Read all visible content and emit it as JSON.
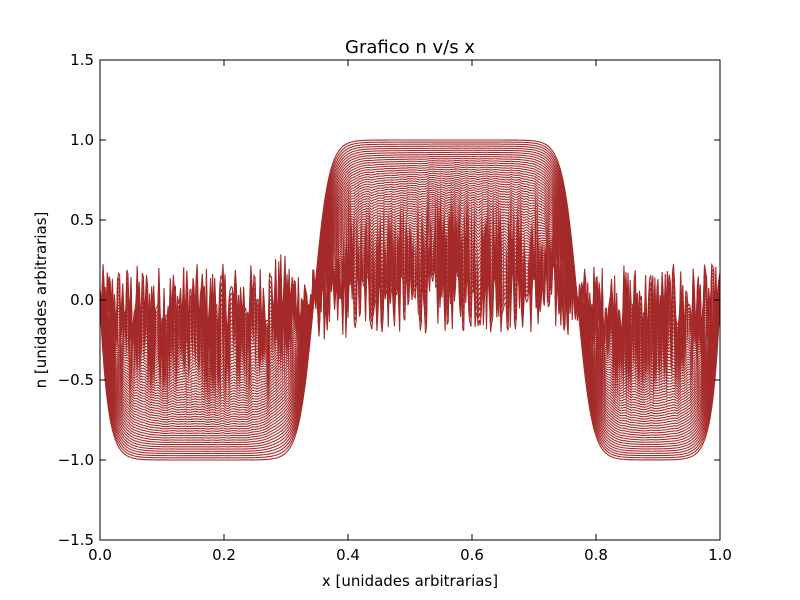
{
  "chart_data": {
    "type": "line",
    "title": "Grafico n v/s x",
    "xlabel": "x [unidades arbitrarias]",
    "ylabel": "n [unidades arbitrarias]",
    "xlim": [
      0.0,
      1.0
    ],
    "ylim": [
      -1.5,
      1.5
    ],
    "grid": false,
    "legend": "none",
    "line_color": "#a52a2a",
    "xticks": [
      0.0,
      0.2,
      0.4,
      0.6,
      0.8,
      1.0
    ],
    "xtick_labels": [
      "0.0",
      "0.2",
      "0.4",
      "0.6",
      "0.8",
      "1.0"
    ],
    "yticks": [
      -1.5,
      -1.0,
      -0.5,
      0.0,
      0.5,
      1.0,
      1.5
    ],
    "ytick_labels": [
      "−1.5",
      "−1.0",
      "−0.5",
      "0.0",
      "0.5",
      "1.0",
      "1.5"
    ],
    "series_count": 60,
    "description": "Family of curves evolving from a noisy near-zero initial profile toward a step profile: about -1 for x<0.33, about +1 for 0.35<x<0.76, about -1 for x>0.79, returning toward 0 near x=0 and x=1.",
    "envelope": {
      "x": [
        0.0,
        0.02,
        0.05,
        0.1,
        0.15,
        0.2,
        0.25,
        0.3,
        0.33,
        0.35,
        0.38,
        0.4,
        0.45,
        0.5,
        0.55,
        0.6,
        0.65,
        0.7,
        0.74,
        0.76,
        0.78,
        0.8,
        0.82,
        0.85,
        0.9,
        0.95,
        0.98,
        1.0
      ],
      "final": [
        -0.05,
        -0.6,
        -0.9,
        -0.98,
        -0.99,
        -0.99,
        -0.98,
        -0.9,
        -0.2,
        0.5,
        0.95,
        0.99,
        1.0,
        1.0,
        1.0,
        1.0,
        1.0,
        0.99,
        0.95,
        0.6,
        -0.2,
        -0.85,
        -0.97,
        -0.99,
        -0.98,
        -0.7,
        -0.3,
        -0.02
      ]
    }
  }
}
